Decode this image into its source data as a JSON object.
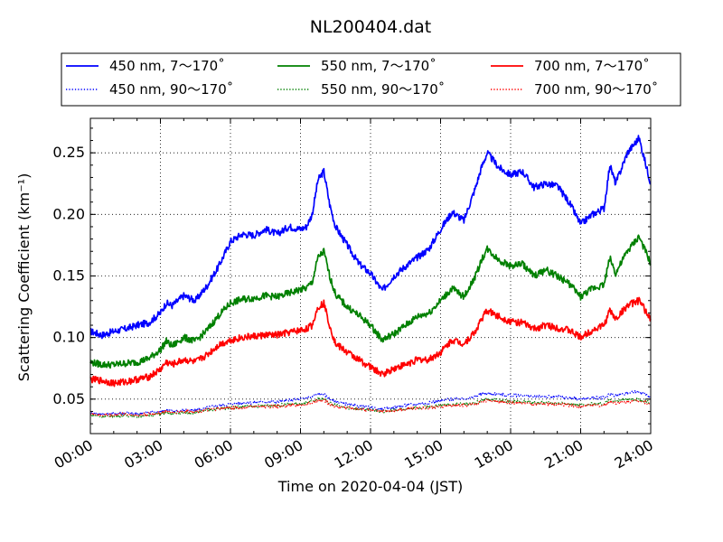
{
  "chart_data": {
    "type": "line",
    "title": "NL200404.dat",
    "xlabel": "Time on 2020-04-04 (JST)",
    "ylabel": "Scattering Coefficient (km⁻¹)",
    "x_unit": "hours",
    "xlim": [
      0,
      24
    ],
    "ylim": [
      0.022,
      0.278
    ],
    "x_ticks": [
      0,
      3,
      6,
      9,
      12,
      15,
      18,
      21,
      24
    ],
    "x_tick_labels": [
      "00:00",
      "03:00",
      "06:00",
      "09:00",
      "12:00",
      "15:00",
      "18:00",
      "21:00",
      "24:00"
    ],
    "y_ticks": [
      0.05,
      0.1,
      0.15,
      0.2,
      0.25
    ],
    "y_tick_labels": [
      "0.05",
      "0.10",
      "0.15",
      "0.20",
      "0.25"
    ],
    "grid": true,
    "legend_position": "top",
    "x": [
      0,
      0.5,
      1,
      1.5,
      2,
      2.5,
      3,
      3.25,
      3.5,
      4,
      4.5,
      5,
      5.5,
      6,
      6.5,
      7,
      7.5,
      8,
      8.5,
      9,
      9.25,
      9.5,
      9.75,
      10,
      10.25,
      10.5,
      11,
      11.5,
      12,
      12.5,
      13,
      13.5,
      14,
      14.5,
      15,
      15.5,
      16,
      16.5,
      16.75,
      17,
      17.5,
      18,
      18.5,
      19,
      19.5,
      20,
      20.5,
      21,
      21.5,
      22,
      22.25,
      22.5,
      23,
      23.5,
      24
    ],
    "series": [
      {
        "name": "450 nm, 7～170˚",
        "color": "#0000ff",
        "style": "solid",
        "values": [
          0.105,
          0.102,
          0.105,
          0.107,
          0.11,
          0.112,
          0.12,
          0.128,
          0.126,
          0.134,
          0.13,
          0.142,
          0.158,
          0.178,
          0.184,
          0.183,
          0.188,
          0.184,
          0.19,
          0.188,
          0.19,
          0.2,
          0.228,
          0.235,
          0.208,
          0.19,
          0.175,
          0.16,
          0.152,
          0.138,
          0.15,
          0.158,
          0.165,
          0.172,
          0.188,
          0.202,
          0.195,
          0.222,
          0.238,
          0.25,
          0.238,
          0.232,
          0.235,
          0.222,
          0.225,
          0.223,
          0.21,
          0.192,
          0.2,
          0.205,
          0.24,
          0.225,
          0.25,
          0.262,
          0.225
        ]
      },
      {
        "name": "450 nm, 90～170˚",
        "color": "#0000ff",
        "style": "dotted",
        "values": [
          0.039,
          0.038,
          0.038,
          0.039,
          0.038,
          0.039,
          0.04,
          0.041,
          0.04,
          0.041,
          0.041,
          0.043,
          0.045,
          0.046,
          0.047,
          0.047,
          0.048,
          0.048,
          0.049,
          0.05,
          0.051,
          0.052,
          0.054,
          0.054,
          0.05,
          0.048,
          0.046,
          0.044,
          0.043,
          0.042,
          0.043,
          0.045,
          0.046,
          0.047,
          0.049,
          0.05,
          0.05,
          0.052,
          0.054,
          0.055,
          0.054,
          0.053,
          0.053,
          0.052,
          0.052,
          0.052,
          0.051,
          0.05,
          0.051,
          0.051,
          0.054,
          0.053,
          0.055,
          0.056,
          0.052
        ]
      },
      {
        "name": "550 nm, 7～170˚",
        "color": "#008000",
        "style": "solid",
        "values": [
          0.08,
          0.078,
          0.078,
          0.079,
          0.08,
          0.083,
          0.09,
          0.097,
          0.093,
          0.1,
          0.097,
          0.106,
          0.118,
          0.128,
          0.131,
          0.132,
          0.134,
          0.133,
          0.136,
          0.139,
          0.14,
          0.145,
          0.165,
          0.17,
          0.15,
          0.135,
          0.125,
          0.118,
          0.11,
          0.098,
          0.103,
          0.11,
          0.117,
          0.12,
          0.13,
          0.14,
          0.133,
          0.15,
          0.163,
          0.172,
          0.163,
          0.158,
          0.16,
          0.15,
          0.155,
          0.15,
          0.144,
          0.133,
          0.14,
          0.143,
          0.165,
          0.152,
          0.17,
          0.182,
          0.16
        ]
      },
      {
        "name": "550 nm, 90～170˚",
        "color": "#008000",
        "style": "dotted",
        "values": [
          0.037,
          0.036,
          0.036,
          0.037,
          0.036,
          0.037,
          0.038,
          0.039,
          0.038,
          0.039,
          0.039,
          0.041,
          0.042,
          0.043,
          0.044,
          0.044,
          0.045,
          0.045,
          0.046,
          0.046,
          0.047,
          0.048,
          0.05,
          0.05,
          0.047,
          0.045,
          0.043,
          0.042,
          0.041,
          0.04,
          0.041,
          0.042,
          0.043,
          0.044,
          0.045,
          0.046,
          0.046,
          0.047,
          0.049,
          0.05,
          0.049,
          0.048,
          0.048,
          0.047,
          0.047,
          0.047,
          0.046,
          0.045,
          0.046,
          0.046,
          0.049,
          0.048,
          0.05,
          0.05,
          0.047
        ]
      },
      {
        "name": "700 nm, 7～170˚",
        "color": "#ff0000",
        "style": "solid",
        "values": [
          0.066,
          0.065,
          0.063,
          0.064,
          0.066,
          0.068,
          0.074,
          0.08,
          0.078,
          0.082,
          0.08,
          0.086,
          0.094,
          0.098,
          0.1,
          0.101,
          0.102,
          0.102,
          0.104,
          0.106,
          0.107,
          0.11,
          0.125,
          0.128,
          0.11,
          0.095,
          0.088,
          0.082,
          0.076,
          0.07,
          0.075,
          0.078,
          0.082,
          0.082,
          0.088,
          0.098,
          0.095,
          0.105,
          0.115,
          0.122,
          0.117,
          0.113,
          0.112,
          0.107,
          0.11,
          0.108,
          0.106,
          0.1,
          0.106,
          0.11,
          0.122,
          0.115,
          0.126,
          0.13,
          0.115
        ]
      },
      {
        "name": "700 nm, 90～170˚",
        "color": "#ff0000",
        "style": "dotted",
        "values": [
          0.038,
          0.037,
          0.037,
          0.038,
          0.037,
          0.038,
          0.039,
          0.04,
          0.039,
          0.04,
          0.04,
          0.041,
          0.042,
          0.043,
          0.043,
          0.044,
          0.044,
          0.044,
          0.045,
          0.045,
          0.046,
          0.047,
          0.049,
          0.049,
          0.046,
          0.044,
          0.043,
          0.042,
          0.041,
          0.04,
          0.041,
          0.042,
          0.043,
          0.043,
          0.044,
          0.045,
          0.045,
          0.046,
          0.048,
          0.049,
          0.048,
          0.047,
          0.047,
          0.046,
          0.046,
          0.046,
          0.045,
          0.044,
          0.045,
          0.045,
          0.048,
          0.047,
          0.048,
          0.049,
          0.046
        ]
      }
    ]
  }
}
